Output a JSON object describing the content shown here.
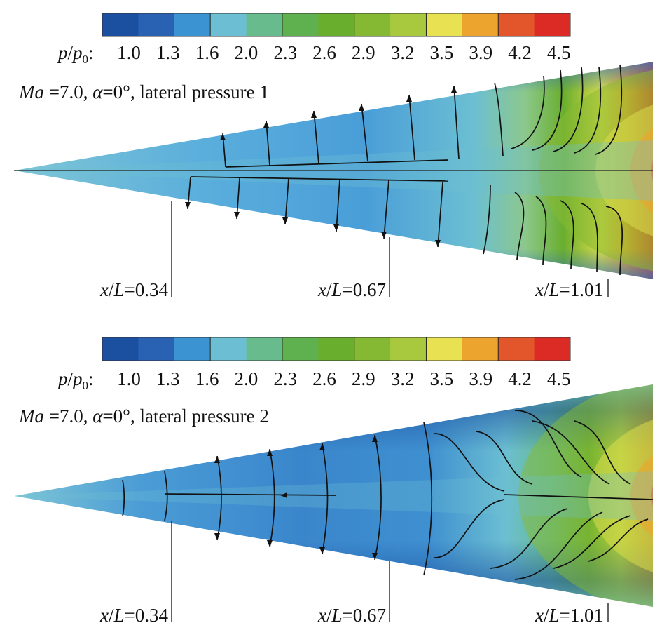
{
  "colorbar": {
    "colors": [
      "#1b4fa0",
      "#2a62b3",
      "#3b93d2",
      "#6cbfd2",
      "#67bb8c",
      "#5fb04f",
      "#6aae2e",
      "#86b933",
      "#a8c83e",
      "#e8e252",
      "#eca42e",
      "#e3562b",
      "#db2b24"
    ]
  },
  "panels": [
    {
      "legend": {
        "var": "p",
        "sub_var": "p",
        "sub_index": "0",
        "ticks": [
          "1.0",
          "1.3",
          "1.6",
          "2.0",
          "2.3",
          "2.6",
          "2.9",
          "3.2",
          "3.5",
          "3.9",
          "4.2",
          "4.5"
        ]
      },
      "condition": {
        "ma_symbol": "Ma",
        "ma_value": " =7.0, ",
        "alpha_symbol": "α",
        "alpha_value": "=0°, ",
        "name": "lateral pressure 1"
      },
      "stations": [
        {
          "var": "x",
          "ref": "L",
          "value": "=0.34"
        },
        {
          "var": "x",
          "ref": "L",
          "value": "=0.67"
        },
        {
          "var": "x",
          "ref": "L",
          "value": "=1.01"
        }
      ]
    },
    {
      "legend": {
        "var": "p",
        "sub_var": "p",
        "sub_index": "0",
        "ticks": [
          "1.0",
          "1.3",
          "1.6",
          "2.0",
          "2.3",
          "2.6",
          "2.9",
          "3.2",
          "3.5",
          "3.9",
          "4.2",
          "4.5"
        ]
      },
      "condition": {
        "ma_symbol": "Ma",
        "ma_value": " =7.0, ",
        "alpha_symbol": "α",
        "alpha_value": "=0°, ",
        "name": "lateral pressure 2"
      },
      "stations": [
        {
          "var": "x",
          "ref": "L",
          "value": "=0.34"
        },
        {
          "var": "x",
          "ref": "L",
          "value": "=0.67"
        },
        {
          "var": "x",
          "ref": "L",
          "value": "=1.01"
        }
      ]
    }
  ]
}
